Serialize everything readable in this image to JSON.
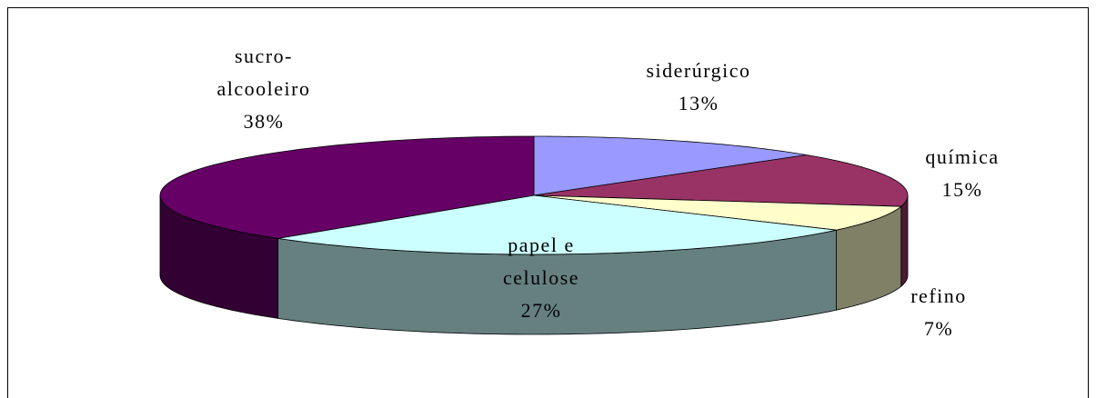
{
  "chart_data": {
    "type": "pie3d",
    "categories": [
      "siderúrgico",
      "química",
      "refino",
      "papel e celulose",
      "sucro-alcooleiro"
    ],
    "values": [
      13,
      15,
      7,
      27,
      38
    ],
    "value_labels": [
      "13%",
      "15%",
      "7%",
      "27%",
      "38%"
    ],
    "colors": [
      "#9999ff",
      "#993366",
      "#ffffcc",
      "#ccffff",
      "#660066"
    ]
  }
}
